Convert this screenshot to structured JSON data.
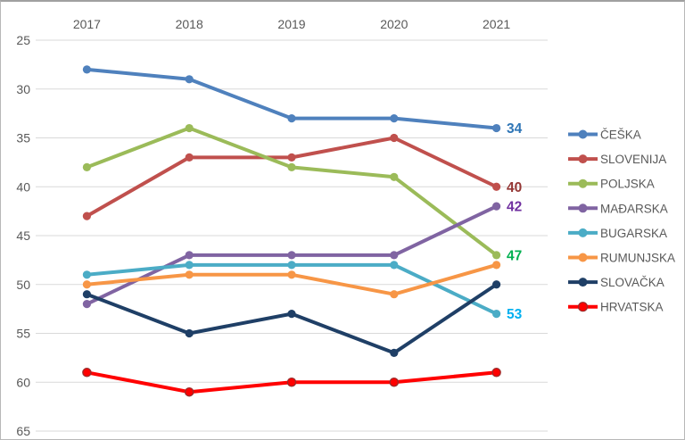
{
  "chart_data": {
    "type": "line",
    "title": "",
    "x": [
      "2017",
      "2018",
      "2019",
      "2020",
      "2021"
    ],
    "xlabel": "",
    "ylabel": "",
    "y_axis": {
      "min": 25,
      "max": 65,
      "step": 5,
      "inverted": true,
      "ticks": [
        25,
        30,
        35,
        40,
        45,
        50,
        55,
        60,
        65
      ]
    },
    "grid": true,
    "legend_position": "right",
    "x_axis_position": "top",
    "series": [
      {
        "name": "ČEŠKA",
        "slug": "ceska",
        "color": "#4F81BD",
        "values": [
          28,
          29,
          33,
          33,
          34
        ],
        "end_label": "34",
        "end_label_color": "#2E75B6"
      },
      {
        "name": "SLOVENIJA",
        "slug": "slovenija",
        "color": "#C0504D",
        "values": [
          43,
          37,
          37,
          35,
          40
        ],
        "end_label": "40",
        "end_label_color": "#943634"
      },
      {
        "name": "POLJSKA",
        "slug": "poljska",
        "color": "#9BBB59",
        "values": [
          38,
          34,
          38,
          39,
          47
        ],
        "end_label": "47",
        "end_label_color": "#00B050"
      },
      {
        "name": "MAĐARSKA",
        "slug": "madarska",
        "color": "#8064A2",
        "values": [
          52,
          47,
          47,
          47,
          42
        ],
        "end_label": "42",
        "end_label_color": "#7030A0"
      },
      {
        "name": "BUGARSKA",
        "slug": "bugarska",
        "color": "#4BACC6",
        "values": [
          49,
          48,
          48,
          48,
          53
        ],
        "end_label": "53",
        "end_label_color": "#00B0F0"
      },
      {
        "name": "RUMUNJSKA",
        "slug": "rumunjska",
        "color": "#F79646",
        "values": [
          50,
          49,
          49,
          51,
          48
        ]
      },
      {
        "name": "SLOVAČKA",
        "slug": "slovacka",
        "color": "#1F3F66",
        "values": [
          51,
          55,
          53,
          57,
          50
        ]
      },
      {
        "name": "HRVATSKA",
        "slug": "hrvatska",
        "color": "#FF0000",
        "values": [
          59,
          61,
          60,
          60,
          59
        ],
        "marker_stroke": "#9C2B2A"
      }
    ]
  },
  "colors": {
    "background": "#FFFFFF",
    "grid": "#D9D9D9",
    "axis_text": "#595959",
    "frame_border": "#A6A6A6"
  }
}
